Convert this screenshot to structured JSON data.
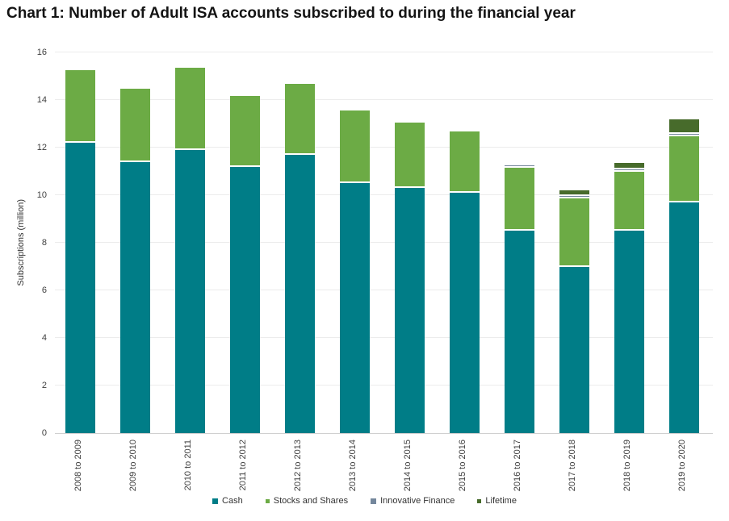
{
  "title": "Chart 1: Number of Adult ISA accounts subscribed to during the financial year",
  "chart_data": {
    "type": "bar",
    "stacked": true,
    "title": "Chart 1: Number of Adult ISA accounts subscribed to during the financial year",
    "xlabel": "",
    "ylabel": "Subscriptions (million)",
    "ylim": [
      0,
      16
    ],
    "ytick_step": 2,
    "grid": true,
    "legend_position": "bottom",
    "categories": [
      "2008 to 2009",
      "2009 to 2010",
      "2010 to 2011",
      "2011 to 2012",
      "2012 to 2013",
      "2013 to 2014",
      "2014 to 2015",
      "2015 to 2016",
      "2016 to 2017",
      "2017 to 2018",
      "2018 to 2019",
      "2019 to 2020"
    ],
    "series": [
      {
        "name": "Cash",
        "color": "#007d87",
        "marker_size": 7,
        "values": [
          12.2,
          11.4,
          11.9,
          11.2,
          11.7,
          10.5,
          10.3,
          10.1,
          8.5,
          7.0,
          8.5,
          9.7
        ]
      },
      {
        "name": "Stocks and Shares",
        "color": "#6cab45",
        "marker_size": 5,
        "values": [
          3.0,
          3.0,
          3.4,
          2.9,
          2.9,
          3.0,
          2.7,
          2.5,
          2.6,
          2.8,
          2.4,
          2.7
        ]
      },
      {
        "name": "Innovative Finance",
        "color": "#74879c",
        "marker_size": 7,
        "values": [
          0,
          0,
          0,
          0,
          0,
          0,
          0,
          0,
          0.01,
          0.03,
          0.04,
          0.03
        ]
      },
      {
        "name": "Lifetime",
        "color": "#476b2b",
        "marker_size": 5,
        "values": [
          0,
          0,
          0,
          0,
          0,
          0,
          0,
          0,
          0,
          0.17,
          0.22,
          0.55
        ]
      }
    ]
  }
}
